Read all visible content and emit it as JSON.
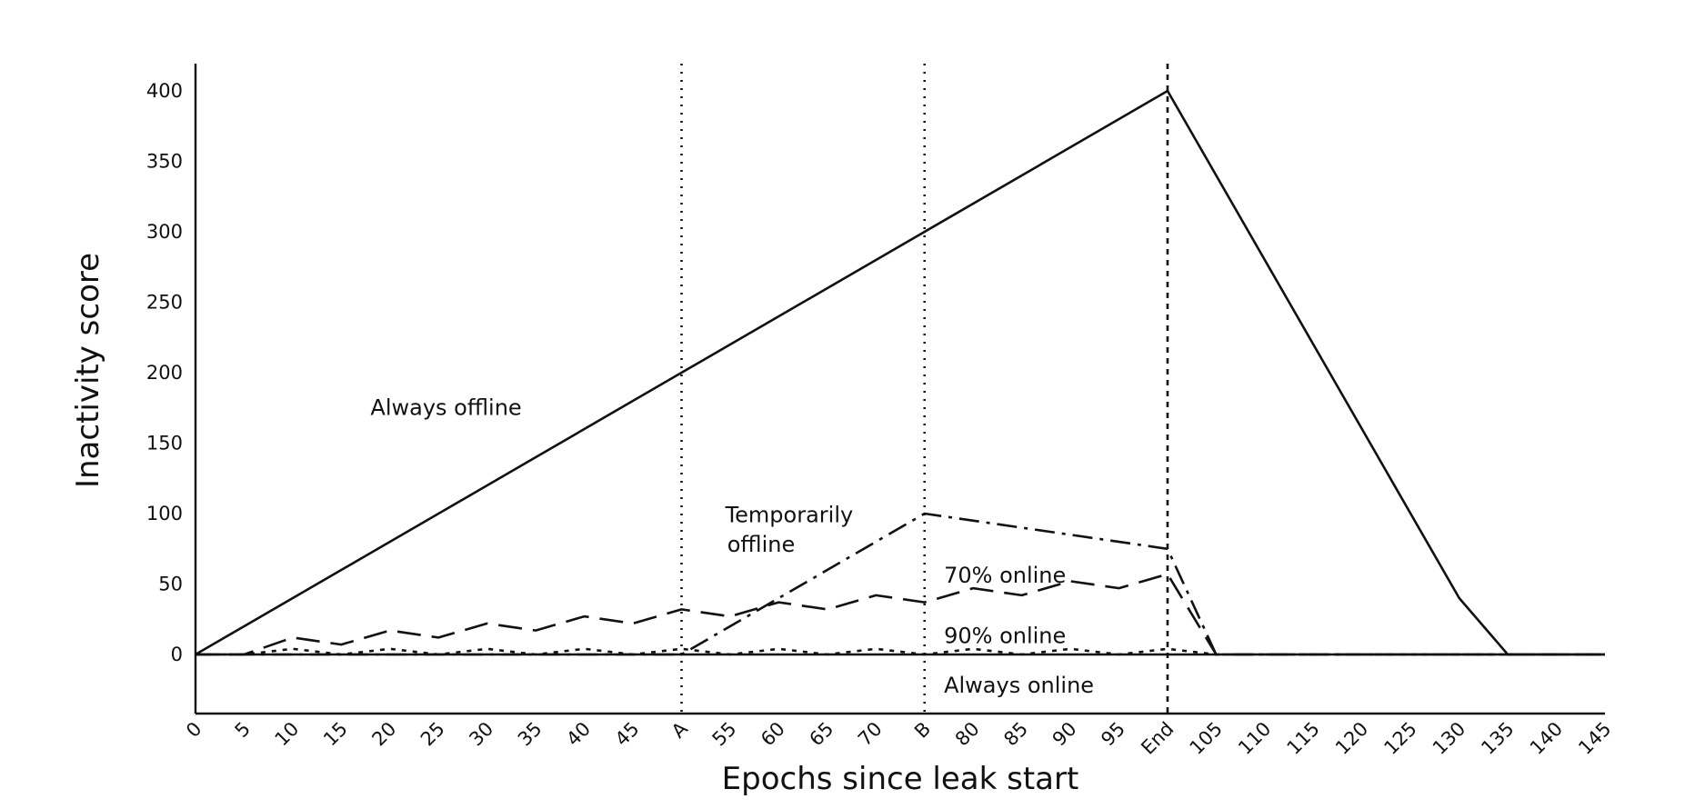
{
  "chart_data": {
    "type": "line",
    "title": "",
    "xlabel": "Epochs since leak start",
    "ylabel": "Inactivity score",
    "xlim": [
      0,
      145
    ],
    "ylim": [
      -40,
      400
    ],
    "grid": false,
    "x_ticks": [
      {
        "x": 0,
        "label": "0"
      },
      {
        "x": 5,
        "label": "5"
      },
      {
        "x": 10,
        "label": "10"
      },
      {
        "x": 15,
        "label": "15"
      },
      {
        "x": 20,
        "label": "20"
      },
      {
        "x": 25,
        "label": "25"
      },
      {
        "x": 30,
        "label": "30"
      },
      {
        "x": 35,
        "label": "35"
      },
      {
        "x": 40,
        "label": "40"
      },
      {
        "x": 45,
        "label": "45"
      },
      {
        "x": 50,
        "label": "A"
      },
      {
        "x": 55,
        "label": "55"
      },
      {
        "x": 60,
        "label": "60"
      },
      {
        "x": 65,
        "label": "65"
      },
      {
        "x": 70,
        "label": "70"
      },
      {
        "x": 75,
        "label": "B"
      },
      {
        "x": 80,
        "label": "80"
      },
      {
        "x": 85,
        "label": "85"
      },
      {
        "x": 90,
        "label": "90"
      },
      {
        "x": 95,
        "label": "95"
      },
      {
        "x": 100,
        "label": "End"
      },
      {
        "x": 105,
        "label": "105"
      },
      {
        "x": 110,
        "label": "110"
      },
      {
        "x": 115,
        "label": "115"
      },
      {
        "x": 120,
        "label": "120"
      },
      {
        "x": 125,
        "label": "125"
      },
      {
        "x": 130,
        "label": "130"
      },
      {
        "x": 135,
        "label": "135"
      },
      {
        "x": 140,
        "label": "140"
      },
      {
        "x": 145,
        "label": "145"
      }
    ],
    "y_ticks": [
      0,
      50,
      100,
      150,
      200,
      250,
      300,
      350,
      400
    ],
    "vertical_markers": [
      {
        "x": 50,
        "label": "A",
        "style": "dotted"
      },
      {
        "x": 75,
        "label": "B",
        "style": "dotted"
      },
      {
        "x": 100,
        "label": "End",
        "style": "dashed"
      }
    ],
    "series": [
      {
        "name": "Always offline",
        "style": "solid",
        "points": [
          [
            0,
            0
          ],
          [
            100,
            400
          ],
          [
            130,
            40
          ],
          [
            135,
            0
          ],
          [
            145,
            0
          ]
        ]
      },
      {
        "name": "Temporarily offline",
        "style": "dashdot",
        "points": [
          [
            0,
            0
          ],
          [
            50,
            0
          ],
          [
            75,
            100
          ],
          [
            100,
            75
          ],
          [
            105,
            0
          ],
          [
            145,
            0
          ]
        ]
      },
      {
        "name": "70% online",
        "style": "dashed",
        "points": [
          [
            0,
            0
          ],
          [
            5,
            0
          ],
          [
            10,
            12
          ],
          [
            15,
            7
          ],
          [
            20,
            17
          ],
          [
            25,
            12
          ],
          [
            30,
            22
          ],
          [
            35,
            17
          ],
          [
            40,
            27
          ],
          [
            45,
            22
          ],
          [
            50,
            32
          ],
          [
            55,
            27
          ],
          [
            60,
            37
          ],
          [
            65,
            32
          ],
          [
            70,
            42
          ],
          [
            75,
            37
          ],
          [
            80,
            47
          ],
          [
            85,
            42
          ],
          [
            90,
            52
          ],
          [
            95,
            47
          ],
          [
            100,
            57
          ],
          [
            105,
            0
          ],
          [
            145,
            0
          ]
        ]
      },
      {
        "name": "90% online",
        "style": "dotted",
        "points": [
          [
            0,
            0
          ],
          [
            5,
            0
          ],
          [
            10,
            4
          ],
          [
            15,
            0
          ],
          [
            20,
            4
          ],
          [
            25,
            0
          ],
          [
            30,
            4
          ],
          [
            35,
            0
          ],
          [
            40,
            4
          ],
          [
            45,
            0
          ],
          [
            50,
            4
          ],
          [
            55,
            0
          ],
          [
            60,
            4
          ],
          [
            65,
            0
          ],
          [
            70,
            4
          ],
          [
            75,
            0
          ],
          [
            80,
            4
          ],
          [
            85,
            0
          ],
          [
            90,
            4
          ],
          [
            95,
            0
          ],
          [
            100,
            4
          ],
          [
            105,
            0
          ],
          [
            145,
            0
          ]
        ]
      },
      {
        "name": "Always online",
        "style": "solid",
        "points": [
          [
            0,
            0
          ],
          [
            145,
            0
          ]
        ]
      }
    ],
    "annotations": [
      {
        "text": "Always offline",
        "x": 18,
        "y": 170
      },
      {
        "text": "Temporarily",
        "x": 54.5,
        "y": 94
      },
      {
        "text": "offline",
        "x": 54.7,
        "y": 73
      },
      {
        "text": "70% online",
        "x": 77,
        "y": 51
      },
      {
        "text": "90% online",
        "x": 77,
        "y": 8
      },
      {
        "text": "Always online",
        "x": 77,
        "y": -27
      }
    ]
  }
}
